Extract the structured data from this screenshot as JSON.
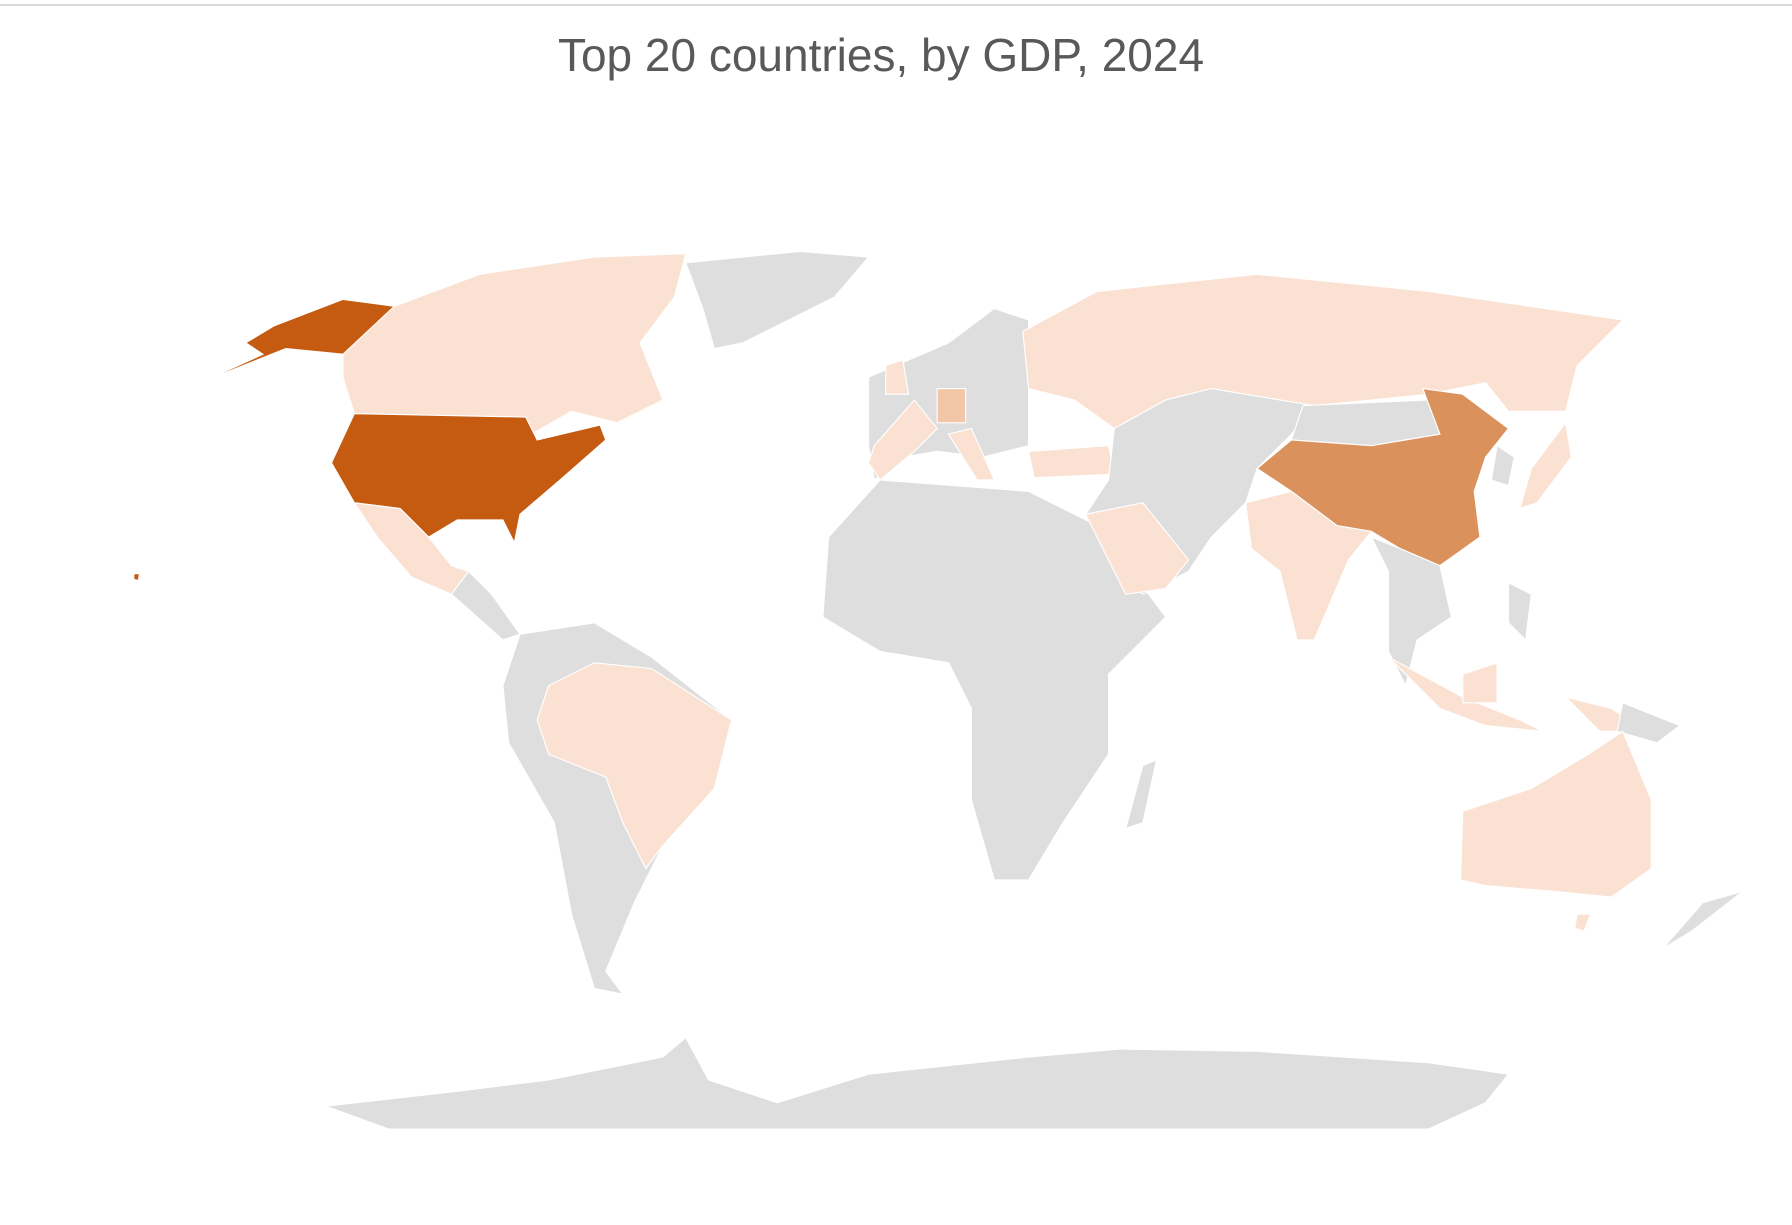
{
  "title": "Top 20 countries, by GDP, 2024",
  "colors": {
    "no_data": "#dedede",
    "low": "#fbe1d2",
    "low_mid": "#f2c6a8",
    "mid": "#da915c",
    "high": "#c55a11"
  }
}
